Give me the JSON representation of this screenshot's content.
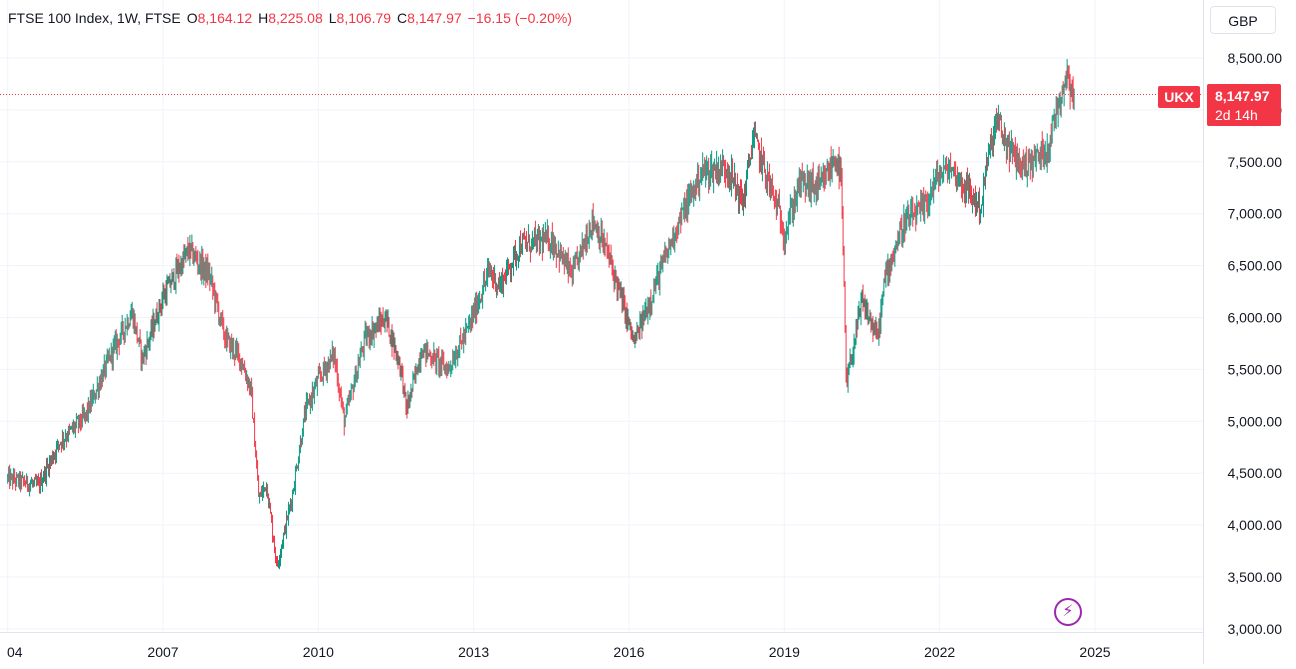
{
  "legend": {
    "symbol": "FTSE 100 Index, 1W, FTSE",
    "open_label": "O",
    "open": "8,164.12",
    "high_label": "H",
    "high": "8,225.08",
    "low_label": "L",
    "low": "8,106.79",
    "close_label": "C",
    "close": "8,147.97",
    "change": "−16.15 (−0.20%)"
  },
  "currency_button": "GBP",
  "last_price": {
    "symbol": "UKX",
    "value": "8,147.97",
    "countdown": "2d 14h"
  },
  "colors": {
    "up": "#089981",
    "down": "#f23645",
    "grid": "#f0f3fa",
    "axis_text": "#131722",
    "accent_purple": "#9c27b0"
  },
  "icons": {
    "alert": "lightning-icon"
  },
  "chart_data": {
    "type": "candlestick",
    "title": "FTSE 100 Index, 1W, FTSE",
    "ylim": [
      3000,
      8600
    ],
    "xlim": [
      2004.0,
      2026.8
    ],
    "y_ticks": [
      "8,500.00",
      "8,000.00",
      "7,500.00",
      "7,000.00",
      "6,500.00",
      "6,000.00",
      "5,500.00",
      "5,000.00",
      "4,500.00",
      "4,000.00",
      "3,500.00",
      "3,000.00"
    ],
    "y_tick_values": [
      8500,
      8000,
      7500,
      7000,
      6500,
      6000,
      5500,
      5000,
      4500,
      4000,
      3500,
      3000
    ],
    "x_ticks": [
      "04",
      "2007",
      "2010",
      "2013",
      "2016",
      "2019",
      "2022",
      "2025"
    ],
    "x_tick_values": [
      2004.0,
      2007.0,
      2010.0,
      2013.0,
      2016.0,
      2019.0,
      2022.0,
      2025.0
    ],
    "last_close": 8147.97,
    "trend": [
      [
        2004.0,
        4450
      ],
      [
        2004.6,
        4380
      ],
      [
        2005.0,
        4800
      ],
      [
        2005.5,
        5050
      ],
      [
        2006.0,
        5650
      ],
      [
        2006.4,
        6050
      ],
      [
        2006.6,
        5600
      ],
      [
        2007.0,
        6200
      ],
      [
        2007.5,
        6650
      ],
      [
        2007.9,
        6400
      ],
      [
        2008.2,
        5800
      ],
      [
        2008.5,
        5600
      ],
      [
        2008.7,
        5300
      ],
      [
        2008.85,
        4250
      ],
      [
        2009.0,
        4400
      ],
      [
        2009.2,
        3600
      ],
      [
        2009.5,
        4300
      ],
      [
        2009.75,
        5100
      ],
      [
        2010.0,
        5400
      ],
      [
        2010.3,
        5650
      ],
      [
        2010.5,
        5000
      ],
      [
        2010.9,
        5800
      ],
      [
        2011.3,
        6000
      ],
      [
        2011.6,
        5500
      ],
      [
        2011.7,
        5100
      ],
      [
        2012.0,
        5700
      ],
      [
        2012.5,
        5500
      ],
      [
        2012.9,
        5900
      ],
      [
        2013.3,
        6450
      ],
      [
        2013.5,
        6300
      ],
      [
        2013.9,
        6700
      ],
      [
        2014.5,
        6750
      ],
      [
        2014.9,
        6400
      ],
      [
        2015.3,
        6950
      ],
      [
        2015.6,
        6600
      ],
      [
        2015.9,
        6100
      ],
      [
        2016.1,
        5750
      ],
      [
        2016.5,
        6300
      ],
      [
        2016.9,
        6850
      ],
      [
        2017.4,
        7400
      ],
      [
        2017.9,
        7450
      ],
      [
        2018.2,
        7100
      ],
      [
        2018.4,
        7750
      ],
      [
        2018.9,
        7000
      ],
      [
        2019.0,
        6800
      ],
      [
        2019.3,
        7300
      ],
      [
        2019.7,
        7250
      ],
      [
        2020.0,
        7550
      ],
      [
        2020.1,
        7300
      ],
      [
        2020.2,
        5300
      ],
      [
        2020.25,
        5500
      ],
      [
        2020.5,
        6150
      ],
      [
        2020.8,
        5800
      ],
      [
        2020.95,
        6400
      ],
      [
        2021.3,
        6900
      ],
      [
        2021.7,
        7050
      ],
      [
        2021.95,
        7350
      ],
      [
        2022.2,
        7450
      ],
      [
        2022.5,
        7250
      ],
      [
        2022.8,
        7050
      ],
      [
        2022.9,
        7450
      ],
      [
        2023.1,
        7900
      ],
      [
        2023.3,
        7650
      ],
      [
        2023.6,
        7450
      ],
      [
        2023.9,
        7550
      ],
      [
        2024.1,
        7650
      ],
      [
        2024.3,
        8100
      ],
      [
        2024.45,
        8350
      ],
      [
        2024.6,
        8150
      ]
    ]
  }
}
